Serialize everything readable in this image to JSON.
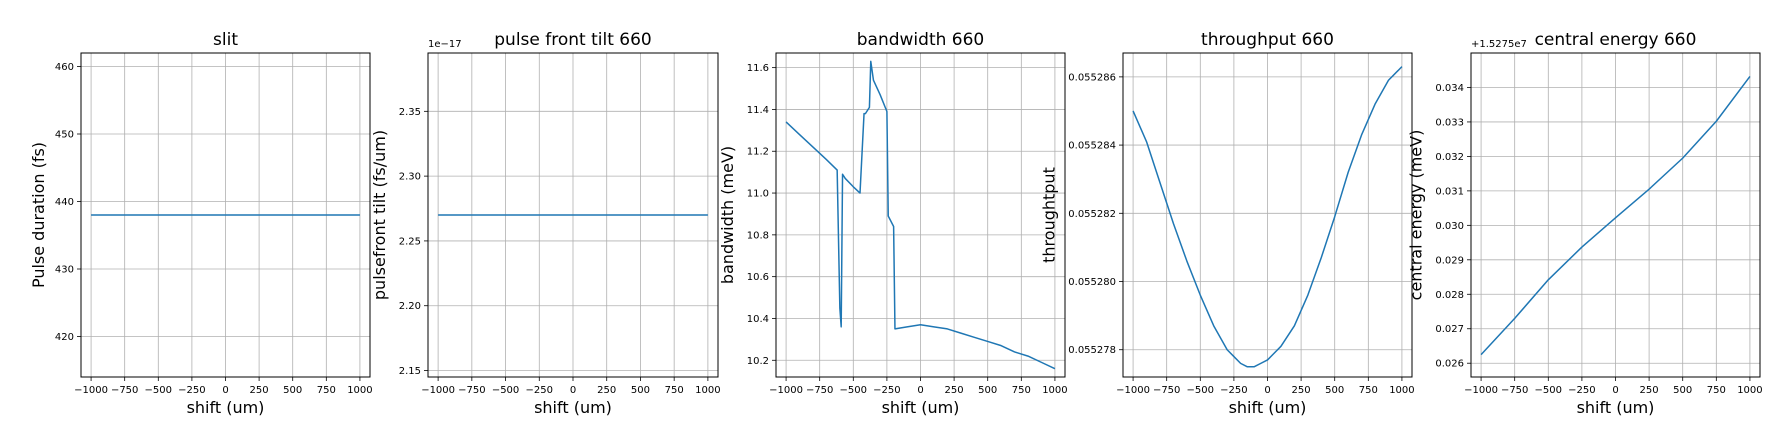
{
  "colors": {
    "series": "#1f77b4",
    "grid": "#b0b0b0"
  },
  "chart_data": [
    {
      "type": "line",
      "title": "slit",
      "xlabel": "shift (um)",
      "ylabel": "Pulse duration (fs)",
      "xlim": [
        -1075,
        1075
      ],
      "ylim": [
        414,
        462
      ],
      "xticks": [
        -1000,
        -750,
        -500,
        -250,
        0,
        250,
        500,
        750,
        1000
      ],
      "xtick_labels": [
        "−1000",
        "−750",
        "−500",
        "−250",
        "0",
        "250",
        "500",
        "750",
        "1000"
      ],
      "yticks": [
        420,
        430,
        440,
        450,
        460
      ],
      "ytick_labels": [
        "420",
        "430",
        "440",
        "450",
        "460"
      ],
      "y_offset_label": "",
      "grid": true,
      "series": [
        {
          "x": [
            -1000,
            1000
          ],
          "y": [
            438,
            438
          ]
        }
      ]
    },
    {
      "type": "line",
      "title": "pulse front tilt 660",
      "xlabel": "shift (um)",
      "ylabel": "pulsefront tilt (fs/um)",
      "xlim": [
        -1075,
        1075
      ],
      "ylim": [
        2.145,
        2.395
      ],
      "xticks": [
        -1000,
        -750,
        -500,
        -250,
        0,
        250,
        500,
        750,
        1000
      ],
      "xtick_labels": [
        "−1000",
        "−750",
        "−500",
        "−250",
        "0",
        "250",
        "500",
        "750",
        "1000"
      ],
      "yticks": [
        2.15,
        2.2,
        2.25,
        2.3,
        2.35
      ],
      "ytick_labels": [
        "2.15",
        "2.20",
        "2.25",
        "2.30",
        "2.35"
      ],
      "y_offset_label": "1e−17",
      "grid": true,
      "series": [
        {
          "x": [
            -1000,
            1000
          ],
          "y": [
            2.27,
            2.27
          ]
        }
      ]
    },
    {
      "type": "line",
      "title": "bandwidth 660",
      "xlabel": "shift (um)",
      "ylabel": "bandwidth (meV)",
      "xlim": [
        -1075,
        1075
      ],
      "ylim": [
        10.12,
        11.67
      ],
      "xticks": [
        -1000,
        -750,
        -500,
        -250,
        0,
        250,
        500,
        750,
        1000
      ],
      "xtick_labels": [
        "−1000",
        "−750",
        "−500",
        "−250",
        "0",
        "250",
        "500",
        "750",
        "1000"
      ],
      "yticks": [
        10.2,
        10.4,
        10.6,
        10.8,
        11.0,
        11.2,
        11.4,
        11.6
      ],
      "ytick_labels": [
        "10.2",
        "10.4",
        "10.6",
        "10.8",
        "11.0",
        "11.2",
        "11.4",
        "11.6"
      ],
      "y_offset_label": "",
      "grid": true,
      "series": [
        {
          "x": [
            -1000,
            -900,
            -800,
            -700,
            -620,
            -600,
            -590,
            -580,
            -560,
            -500,
            -450,
            -420,
            -410,
            -380,
            -370,
            -350,
            -300,
            -250,
            -240,
            -200,
            -190,
            -100,
            0,
            100,
            200,
            300,
            400,
            500,
            600,
            700,
            800,
            900,
            1000
          ],
          "y": [
            11.34,
            11.28,
            11.22,
            11.16,
            11.11,
            10.45,
            10.36,
            11.09,
            11.07,
            11.03,
            11.0,
            11.38,
            11.38,
            11.41,
            11.63,
            11.54,
            11.47,
            11.39,
            10.89,
            10.84,
            10.35,
            10.36,
            10.37,
            10.36,
            10.35,
            10.33,
            10.31,
            10.29,
            10.27,
            10.24,
            10.22,
            10.19,
            10.16
          ]
        }
      ]
    },
    {
      "type": "line",
      "title": "throughput 660",
      "xlabel": "shift (um)",
      "ylabel": "throughtput",
      "xlim": [
        -1075,
        1075
      ],
      "ylim": [
        0.0552772,
        0.0552867
      ],
      "xticks": [
        -1000,
        -750,
        -500,
        -250,
        0,
        250,
        500,
        750,
        1000
      ],
      "xtick_labels": [
        "−1000",
        "−750",
        "−500",
        "−250",
        "0",
        "250",
        "500",
        "750",
        "1000"
      ],
      "yticks": [
        0.055278,
        0.05528,
        0.055282,
        0.055284,
        0.055286
      ],
      "ytick_labels": [
        "0.055278",
        "0.055280",
        "0.055282",
        "0.055284",
        "0.055286"
      ],
      "y_offset_label": "",
      "grid": true,
      "series": [
        {
          "x": [
            -1000,
            -900,
            -800,
            -700,
            -600,
            -500,
            -400,
            -300,
            -250,
            -200,
            -150,
            -100,
            -50,
            0,
            50,
            100,
            200,
            300,
            400,
            500,
            600,
            700,
            800,
            900,
            950,
            1000
          ],
          "y": [
            0.055285,
            0.0552841,
            0.0552829,
            0.0552817,
            0.0552806,
            0.0552796,
            0.0552787,
            0.055278,
            0.0552778,
            0.0552776,
            0.0552775,
            0.0552775,
            0.0552776,
            0.0552777,
            0.0552779,
            0.0552781,
            0.0552787,
            0.0552796,
            0.0552807,
            0.0552819,
            0.0552832,
            0.0552843,
            0.0552852,
            0.0552859,
            0.0552861,
            0.0552863
          ]
        }
      ]
    },
    {
      "type": "line",
      "title": "central energy 660",
      "xlabel": "shift (um)",
      "ylabel": "central energy (meV)",
      "xlim": [
        -1075,
        1075
      ],
      "ylim": [
        0.0256,
        0.035
      ],
      "xticks": [
        -1000,
        -750,
        -500,
        -250,
        0,
        250,
        500,
        750,
        1000
      ],
      "xtick_labels": [
        "−1000",
        "−750",
        "−500",
        "−250",
        "0",
        "250",
        "500",
        "750",
        "1000"
      ],
      "yticks": [
        0.026,
        0.027,
        0.028,
        0.029,
        0.03,
        0.031,
        0.032,
        0.033,
        0.034
      ],
      "ytick_labels": [
        "0.026",
        "0.027",
        "0.028",
        "0.029",
        "0.030",
        "0.031",
        "0.032",
        "0.033",
        "0.034"
      ],
      "y_offset_label": "+1.5275e7",
      "grid": true,
      "series": [
        {
          "x": [
            -1000,
            -750,
            -500,
            -250,
            0,
            250,
            500,
            750,
            1000
          ],
          "y": [
            0.02625,
            0.0273,
            0.02842,
            0.02937,
            0.03022,
            0.03105,
            0.03195,
            0.03302,
            0.03432
          ]
        }
      ]
    }
  ]
}
